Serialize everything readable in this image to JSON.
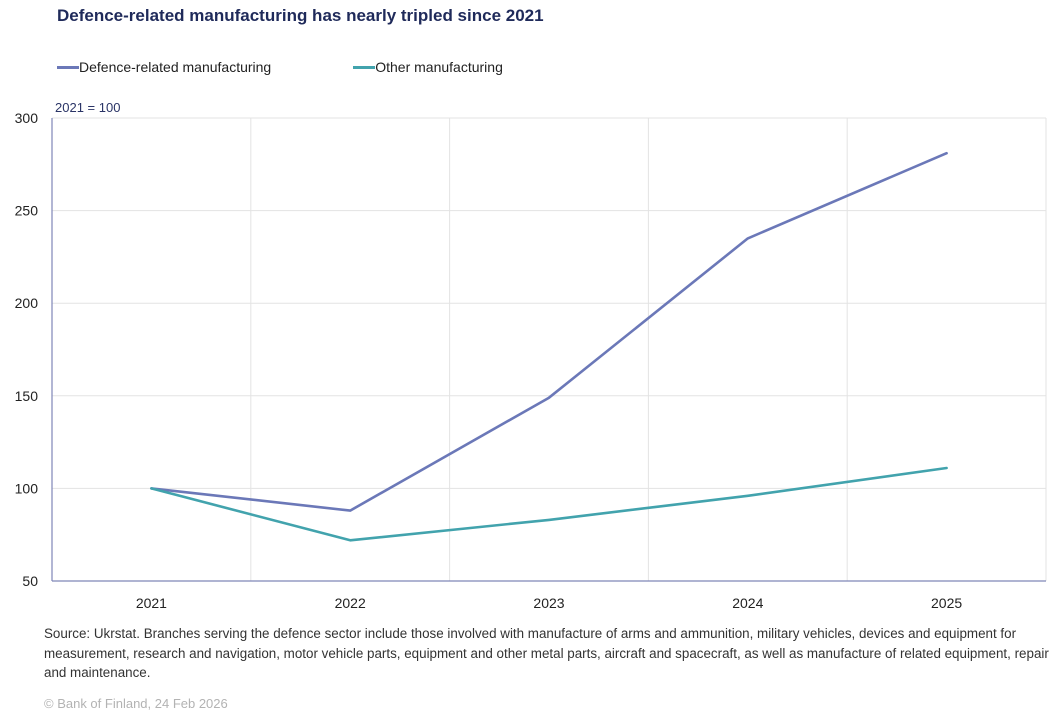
{
  "header": {
    "title": "Defence-related manufacturing has nearly tripled since 2021"
  },
  "chart_data": {
    "type": "line",
    "title": "Defence-related manufacturing has nearly tripled since 2021",
    "unit_label": "2021 = 100",
    "xlabel": "",
    "ylabel": "",
    "categories": [
      "2021",
      "2022",
      "2023",
      "2024",
      "2025"
    ],
    "ylim": [
      50,
      300
    ],
    "yticks": [
      50,
      100,
      150,
      200,
      250,
      300
    ],
    "grid": true,
    "legend_position": "top-left",
    "series": [
      {
        "name": "Defence-related manufacturing",
        "color": "#6b78b8",
        "values": [
          100,
          88,
          149,
          235,
          281
        ]
      },
      {
        "name": "Other manufacturing",
        "color": "#42a3ad",
        "values": [
          100,
          72,
          83,
          96,
          111
        ]
      }
    ]
  },
  "footer": {
    "source": "Source: Ukrstat. Branches serving the defence sector include those involved with manufacture of arms and ammunition, military vehicles, devices and equipment for measurement, research and navigation, motor vehicle parts, equipment and other metal parts, aircraft and spacecraft, as well as manufacture of related equipment, repair and maintenance.",
    "copyright": "© Bank of Finland, 24 Feb 2026"
  }
}
